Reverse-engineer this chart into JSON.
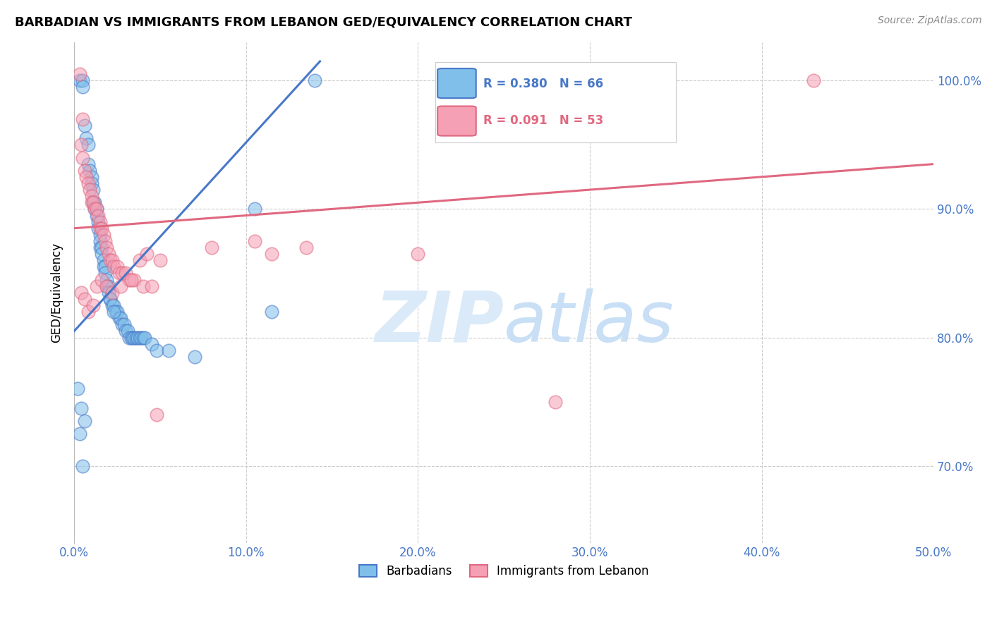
{
  "title": "BARBADIAN VS IMMIGRANTS FROM LEBANON GED/EQUIVALENCY CORRELATION CHART",
  "source": "Source: ZipAtlas.com",
  "ylabel": "GED/Equivalency",
  "xmin": 0.0,
  "xmax": 50.0,
  "ymin": 64.0,
  "ymax": 103.0,
  "yticks": [
    70.0,
    80.0,
    90.0,
    100.0
  ],
  "xticks": [
    0.0,
    10.0,
    20.0,
    30.0,
    40.0,
    50.0
  ],
  "blue_color": "#7fbfea",
  "pink_color": "#f5a0b5",
  "trend_blue": "#4878c8",
  "trend_pink": "#e06880",
  "watermark": "ZIPatlas",
  "watermark_color": "#daeaf8",
  "blue_scatter_x": [
    0.3,
    0.5,
    0.5,
    0.6,
    0.7,
    0.8,
    0.8,
    0.9,
    1.0,
    1.0,
    1.1,
    1.1,
    1.2,
    1.2,
    1.3,
    1.3,
    1.4,
    1.4,
    1.5,
    1.5,
    1.5,
    1.6,
    1.6,
    1.7,
    1.7,
    1.8,
    1.8,
    1.9,
    1.9,
    2.0,
    2.0,
    2.1,
    2.1,
    2.2,
    2.3,
    2.4,
    2.5,
    2.6,
    2.7,
    2.8,
    2.9,
    3.0,
    3.1,
    3.2,
    3.3,
    3.4,
    3.5,
    3.6,
    3.7,
    3.8,
    3.9,
    4.0,
    4.1,
    4.5,
    4.8,
    5.5,
    7.0,
    10.5,
    11.5,
    14.0,
    0.2,
    0.4,
    2.3,
    0.6,
    0.3,
    0.5
  ],
  "blue_scatter_y": [
    100.0,
    100.0,
    99.5,
    96.5,
    95.5,
    95.0,
    93.5,
    93.0,
    92.5,
    92.0,
    91.5,
    90.5,
    90.5,
    90.0,
    90.0,
    89.5,
    89.0,
    88.5,
    88.0,
    87.5,
    87.0,
    87.0,
    86.5,
    86.0,
    85.5,
    85.5,
    85.0,
    84.5,
    84.0,
    84.0,
    83.5,
    83.0,
    83.0,
    82.5,
    82.5,
    82.0,
    82.0,
    81.5,
    81.5,
    81.0,
    81.0,
    80.5,
    80.5,
    80.0,
    80.0,
    80.0,
    80.0,
    80.0,
    80.0,
    80.0,
    80.0,
    80.0,
    80.0,
    79.5,
    79.0,
    79.0,
    78.5,
    90.0,
    82.0,
    100.0,
    76.0,
    74.5,
    82.0,
    73.5,
    72.5,
    70.0
  ],
  "pink_scatter_x": [
    0.3,
    0.4,
    0.5,
    0.5,
    0.6,
    0.7,
    0.8,
    0.9,
    1.0,
    1.0,
    1.1,
    1.2,
    1.3,
    1.4,
    1.5,
    1.5,
    1.6,
    1.7,
    1.8,
    1.9,
    2.0,
    2.1,
    2.2,
    2.3,
    2.5,
    2.6,
    2.8,
    3.0,
    3.2,
    3.5,
    4.0,
    4.5,
    5.0,
    8.0,
    10.5,
    11.5,
    13.5,
    20.0,
    28.0,
    43.0,
    0.4,
    0.6,
    0.8,
    1.1,
    1.3,
    1.6,
    1.9,
    2.2,
    2.7,
    3.3,
    3.8,
    4.2,
    4.8
  ],
  "pink_scatter_y": [
    100.5,
    95.0,
    94.0,
    97.0,
    93.0,
    92.5,
    92.0,
    91.5,
    91.0,
    90.5,
    90.5,
    90.0,
    90.0,
    89.5,
    89.0,
    88.5,
    88.5,
    88.0,
    87.5,
    87.0,
    86.5,
    86.0,
    86.0,
    85.5,
    85.5,
    85.0,
    85.0,
    85.0,
    84.5,
    84.5,
    84.0,
    84.0,
    86.0,
    87.0,
    87.5,
    86.5,
    87.0,
    86.5,
    75.0,
    100.0,
    83.5,
    83.0,
    82.0,
    82.5,
    84.0,
    84.5,
    84.0,
    83.5,
    84.0,
    84.5,
    86.0,
    86.5,
    74.0
  ],
  "blue_trend_x": [
    0.0,
    14.3
  ],
  "blue_trend_y": [
    80.5,
    101.5
  ],
  "pink_trend_x": [
    0.0,
    50.0
  ],
  "pink_trend_y": [
    88.5,
    93.5
  ]
}
